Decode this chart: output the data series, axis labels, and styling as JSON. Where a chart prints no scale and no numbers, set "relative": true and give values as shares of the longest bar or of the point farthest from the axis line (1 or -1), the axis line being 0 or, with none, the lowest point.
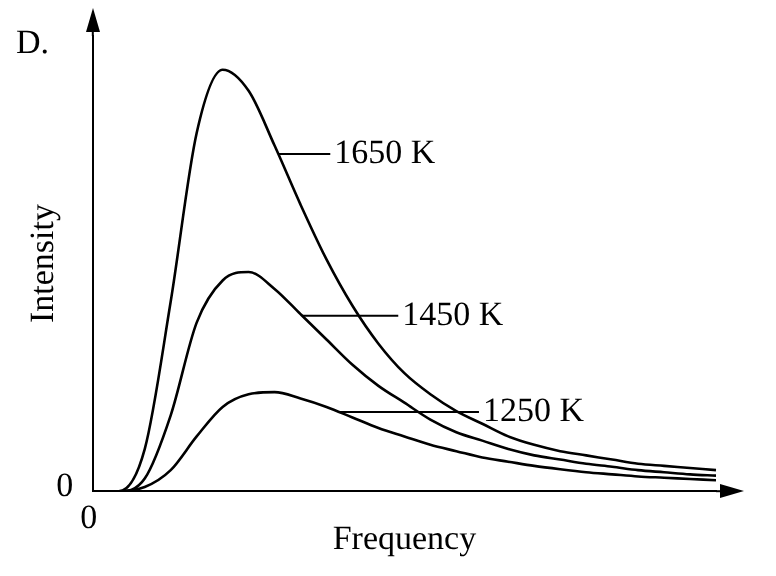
{
  "chart_data": {
    "type": "line",
    "relative": true,
    "xlabel": "Frequency",
    "ylabel": "Intensity",
    "annotations": [
      "D.",
      "0",
      "0"
    ],
    "marker": "none",
    "line_style": "solid",
    "grid": false,
    "legend": "right",
    "tick_labels": false,
    "categories": [
      null,
      null,
      null,
      null,
      null,
      null,
      null,
      null,
      null,
      null,
      null,
      null,
      null,
      null,
      null,
      null,
      null,
      null,
      null,
      null,
      null,
      null,
      null,
      null,
      null
    ],
    "series": [
      {
        "name": "1650 K",
        "color": "#000000",
        "values": [
          0,
          0,
          0.1,
          0.45,
          0.85,
          1.0,
          0.95,
          0.82,
          0.68,
          0.55,
          0.44,
          0.35,
          0.28,
          0.23,
          0.19,
          0.16,
          0.13,
          0.11,
          0.095,
          0.085,
          0.075,
          0.065,
          0.06,
          0.055,
          0.05
        ]
      },
      {
        "name": "1450 K",
        "color": "#000000",
        "values": [
          0,
          0,
          0.03,
          0.18,
          0.4,
          0.5,
          0.52,
          0.48,
          0.42,
          0.36,
          0.3,
          0.25,
          0.21,
          0.17,
          0.14,
          0.12,
          0.1,
          0.085,
          0.075,
          0.065,
          0.058,
          0.05,
          0.045,
          0.04,
          0.037
        ]
      },
      {
        "name": "1250 K",
        "color": "#000000",
        "values": [
          0,
          0,
          0.01,
          0.05,
          0.13,
          0.2,
          0.23,
          0.235,
          0.22,
          0.2,
          0.175,
          0.15,
          0.13,
          0.11,
          0.095,
          0.08,
          0.07,
          0.06,
          0.052,
          0.045,
          0.04,
          0.035,
          0.032,
          0.029,
          0.026
        ]
      }
    ]
  }
}
